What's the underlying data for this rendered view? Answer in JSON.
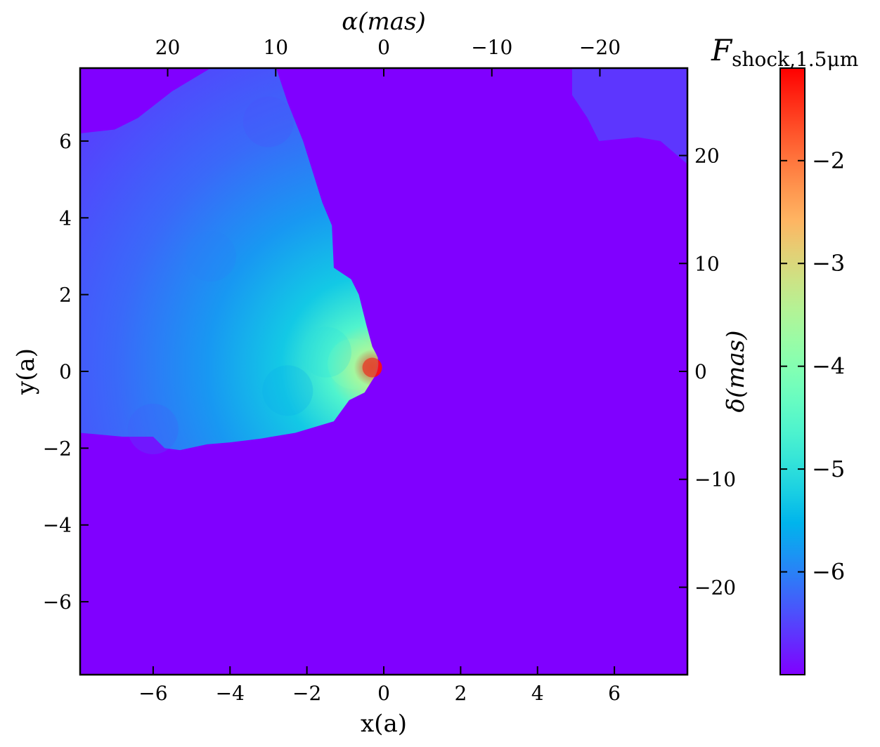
{
  "chart_data": {
    "type": "heatmap",
    "title": "",
    "xlabel": "x(a)",
    "ylabel": "y(a)",
    "xlim": [
      -7.9,
      7.9
    ],
    "ylim": [
      -7.9,
      7.9
    ],
    "x_ticks": [
      -6,
      -4,
      -2,
      0,
      2,
      4,
      6
    ],
    "x_tick_labels": [
      "−6",
      "−4",
      "−2",
      "0",
      "2",
      "4",
      "6"
    ],
    "y_ticks": [
      -6,
      -4,
      -2,
      0,
      2,
      4,
      6
    ],
    "y_tick_labels": [
      "−6",
      "−4",
      "−2",
      "0",
      "2",
      "4",
      "6"
    ],
    "top_axis": {
      "label_symbol": "α",
      "label_unit": "(mas)",
      "lim": [
        28.1,
        -28.1
      ],
      "ticks": [
        20,
        10,
        0,
        -10,
        -20
      ],
      "tick_labels": [
        "20",
        "10",
        "0",
        "−10",
        "−20"
      ]
    },
    "right_axis": {
      "label_symbol": "δ",
      "label_unit": "(mas)",
      "lim": [
        -28.1,
        28.1
      ],
      "ticks": [
        20,
        10,
        0,
        -10,
        -20
      ],
      "tick_labels": [
        "20",
        "10",
        "0",
        "−10",
        "−20"
      ]
    },
    "colorbar": {
      "label_main": "F",
      "label_sub": "shock,1.5μm",
      "vmin": -7.0,
      "vmax": -1.1,
      "ticks": [
        -2,
        -3,
        -4,
        -5,
        -6
      ],
      "tick_labels": [
        "−2",
        "−3",
        "−4",
        "−5",
        "−6"
      ],
      "colormap": "rainbow"
    },
    "background_value": -7.0,
    "emission_regions": [
      {
        "name": "main shocked region",
        "value": -6.2,
        "boundary": [
          [
            -7.9,
            -1.6
          ],
          [
            -6.8,
            -1.7
          ],
          [
            -6.0,
            -1.7
          ],
          [
            -5.7,
            -2.0
          ],
          [
            -5.3,
            -2.05
          ],
          [
            -4.6,
            -1.9
          ],
          [
            -4.0,
            -1.85
          ],
          [
            -3.2,
            -1.75
          ],
          [
            -2.3,
            -1.6
          ],
          [
            -1.3,
            -1.3
          ],
          [
            -0.9,
            -0.75
          ],
          [
            -0.5,
            -0.55
          ],
          [
            -0.25,
            -0.15
          ],
          [
            -0.15,
            0.35
          ],
          [
            -0.3,
            0.65
          ],
          [
            -0.45,
            1.2
          ],
          [
            -0.65,
            2.0
          ],
          [
            -0.85,
            2.4
          ],
          [
            -1.3,
            2.7
          ],
          [
            -1.35,
            3.8
          ],
          [
            -1.6,
            4.4
          ],
          [
            -2.1,
            6.0
          ],
          [
            -2.5,
            7.0
          ],
          [
            -2.8,
            7.9
          ],
          [
            -4.5,
            7.9
          ],
          [
            -5.5,
            7.3
          ],
          [
            -6.4,
            6.6
          ],
          [
            -7.0,
            6.3
          ],
          [
            -7.9,
            6.2
          ]
        ]
      },
      {
        "name": "upper right patch",
        "value": -6.6,
        "boundary": [
          [
            4.9,
            7.9
          ],
          [
            7.9,
            7.9
          ],
          [
            7.9,
            5.4
          ],
          [
            7.2,
            6.0
          ],
          [
            6.6,
            6.1
          ],
          [
            5.6,
            6.0
          ],
          [
            5.3,
            6.6
          ],
          [
            4.9,
            7.2
          ]
        ]
      }
    ],
    "emission_gradient": [
      {
        "x": -0.3,
        "y": 0.1,
        "value": -1.2
      },
      {
        "x": -0.8,
        "y": 0.2,
        "value": -4.0
      },
      {
        "x": -1.5,
        "y": 0.5,
        "value": -5.0
      },
      {
        "x": -2.5,
        "y": -0.5,
        "value": -5.6
      },
      {
        "x": -4.5,
        "y": 3.0,
        "value": -6.0
      },
      {
        "x": -6.0,
        "y": -1.5,
        "value": -6.3
      },
      {
        "x": -3.0,
        "y": 6.5,
        "value": -6.4
      }
    ],
    "grid": false
  }
}
